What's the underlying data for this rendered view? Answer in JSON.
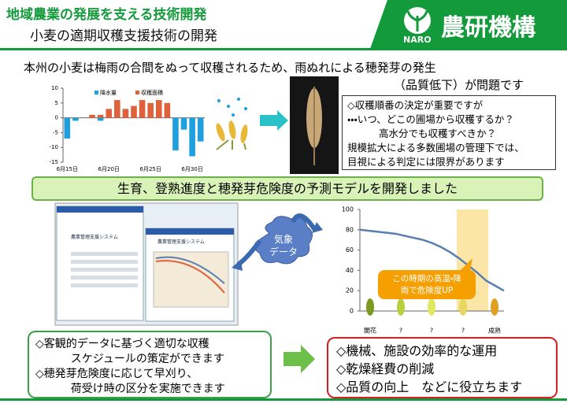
{
  "header": {
    "title": "地域農業の発展を支える技術開発",
    "subtitle": "小麦の適期収穫支援技術の開発",
    "logo": "農研機構",
    "logo_sub": "NARO"
  },
  "intro": [
    "本州の小麦は梅雨の合間をぬって収穫されるため、雨ぬれによる穂発芽の発生",
    "（品質低下）が問題です"
  ],
  "rain_chart": {
    "type": "bar",
    "categories": [
      "6月15日",
      null,
      null,
      null,
      null,
      "6月20日",
      null,
      null,
      null,
      null,
      "6月25日",
      null,
      null,
      null,
      null,
      "6月30日",
      null
    ],
    "series": [
      {
        "name": "降水量",
        "color": "#1e9fe0",
        "values": [
          -7,
          -1,
          0,
          0,
          -1,
          0,
          0,
          0,
          0,
          0,
          0,
          0,
          0,
          -11,
          -4,
          -13,
          -8
        ]
      },
      {
        "name": "収穫面積",
        "color": "#e0623a",
        "values": [
          0,
          0,
          0,
          1,
          1,
          3,
          6,
          3,
          4,
          6,
          5,
          6,
          5,
          0,
          0,
          0,
          0
        ]
      }
    ],
    "ylim": [
      -15,
      10
    ],
    "yticks": [
      10,
      5,
      0,
      -5,
      -10,
      -15
    ]
  },
  "problem_box": [
    "◇収穫順番の決定が重要ですが",
    "・・・いつ、どこの圃場から収穫するか？",
    "高水分でも収穫すべきか？",
    "規模拡大による多数圃場の管理下では、",
    "目視による判定には限界があります"
  ],
  "banner": "生育、登熟進度と穂発芽危険度の予測モデルを開発しました",
  "app_title": "農業管理支援システム",
  "cloud": [
    "気象",
    "データ"
  ],
  "risk_chart": {
    "type": "line",
    "color": "#5b7fb0",
    "values": [
      80,
      79,
      78,
      77,
      76,
      74,
      72,
      70,
      67,
      63,
      58,
      52,
      45,
      38,
      30,
      25,
      20
    ],
    "ylim": [
      0,
      100
    ],
    "yticks": [
      0,
      20,
      40,
      60,
      80,
      100
    ],
    "stages": [
      "開花",
      "?",
      "?",
      "?",
      "成熟"
    ],
    "callout": [
      "この時期の高温・降",
      "雨で危険度UP"
    ]
  },
  "merit_left": [
    "◇客観的データに基づく適切な収穫",
    "スケジュールの策定ができます",
    "◇穂発芽危険度に応じて早刈り、",
    "荷受け時の区分を実施できます"
  ],
  "merit_right": [
    "◇機械、施設の効率的な運用",
    "◇乾燥経費の削減",
    "◇品質の向上　などに役立ちます"
  ]
}
